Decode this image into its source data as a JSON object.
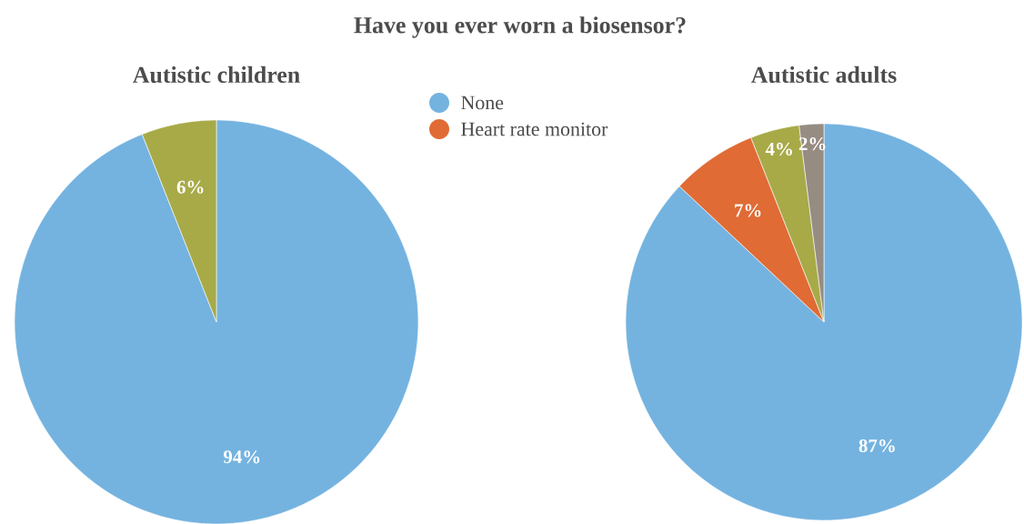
{
  "chart_data": [
    {
      "type": "pie",
      "title": "Autistic children",
      "annotations": [
        "Have you ever worn a biosensor?"
      ],
      "categories": [
        null,
        null
      ],
      "values": [
        94,
        6
      ],
      "colors": [
        "#74b3e0",
        "#a8aa48"
      ],
      "value_labels": [
        "94%",
        "6%"
      ]
    },
    {
      "type": "pie",
      "title": "Autistic adults",
      "categories": [
        "None",
        "Heart rate monitor",
        null,
        null
      ],
      "values": [
        87,
        7,
        4,
        2
      ],
      "colors": [
        "#74b3e0",
        "#e06b35",
        "#a8aa48",
        "#968c82"
      ],
      "value_labels": [
        "87%",
        "7%",
        "4%",
        "2%"
      ],
      "legend": "top left"
    }
  ]
}
